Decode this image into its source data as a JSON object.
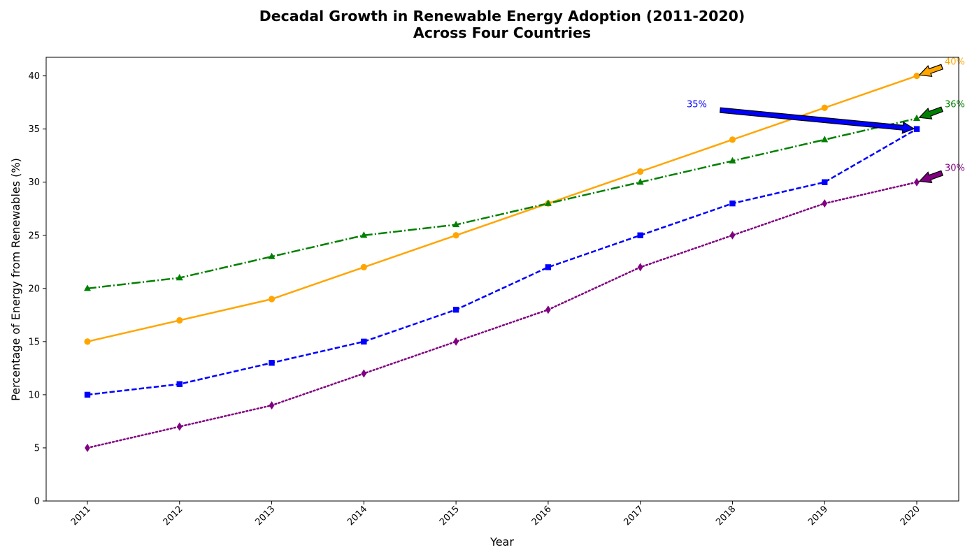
{
  "chart_data": {
    "type": "line",
    "title_lines": [
      "Decadal Growth in Renewable Energy Adoption (2011-2020)",
      "Across Four Countries"
    ],
    "xlabel": "Year",
    "ylabel": "Percentage of Energy from Renewables (%)",
    "categories": [
      "2011",
      "2012",
      "2013",
      "2014",
      "2015",
      "2016",
      "2017",
      "2018",
      "2019",
      "2020"
    ],
    "ylim": [
      0,
      41.75
    ],
    "yticks": [
      0,
      5,
      10,
      15,
      20,
      25,
      30,
      35,
      40
    ],
    "grid": false,
    "legend": "none",
    "series": [
      {
        "color": "#ffa500",
        "marker": "circle",
        "dash": "solid",
        "values": [
          15,
          17,
          19,
          22,
          25,
          28,
          31,
          34,
          37,
          40
        ]
      },
      {
        "color": "#0000ff",
        "marker": "square",
        "dash": "dashed",
        "values": [
          10,
          11,
          13,
          15,
          18,
          22,
          25,
          28,
          30,
          35
        ]
      },
      {
        "color": "#008000",
        "marker": "triangle",
        "dash": "dashdot",
        "values": [
          20,
          21,
          23,
          25,
          26,
          28,
          30,
          32,
          34,
          36
        ]
      },
      {
        "color": "#800080",
        "marker": "diamond",
        "dash": "dotted",
        "values": [
          5,
          7,
          9,
          12,
          15,
          18,
          22,
          25,
          28,
          30
        ]
      }
    ],
    "annotations": [
      {
        "text": "40%",
        "color": "#ffa500",
        "target_year": "2020",
        "target_value": 40
      },
      {
        "text": "36%",
        "color": "#008000",
        "target_year": "2020",
        "target_value": 36
      },
      {
        "text": "35%",
        "color": "#0000ff",
        "target_year": "2020",
        "target_value": 35
      },
      {
        "text": "30%",
        "color": "#800080",
        "target_year": "2020",
        "target_value": 30
      }
    ]
  }
}
